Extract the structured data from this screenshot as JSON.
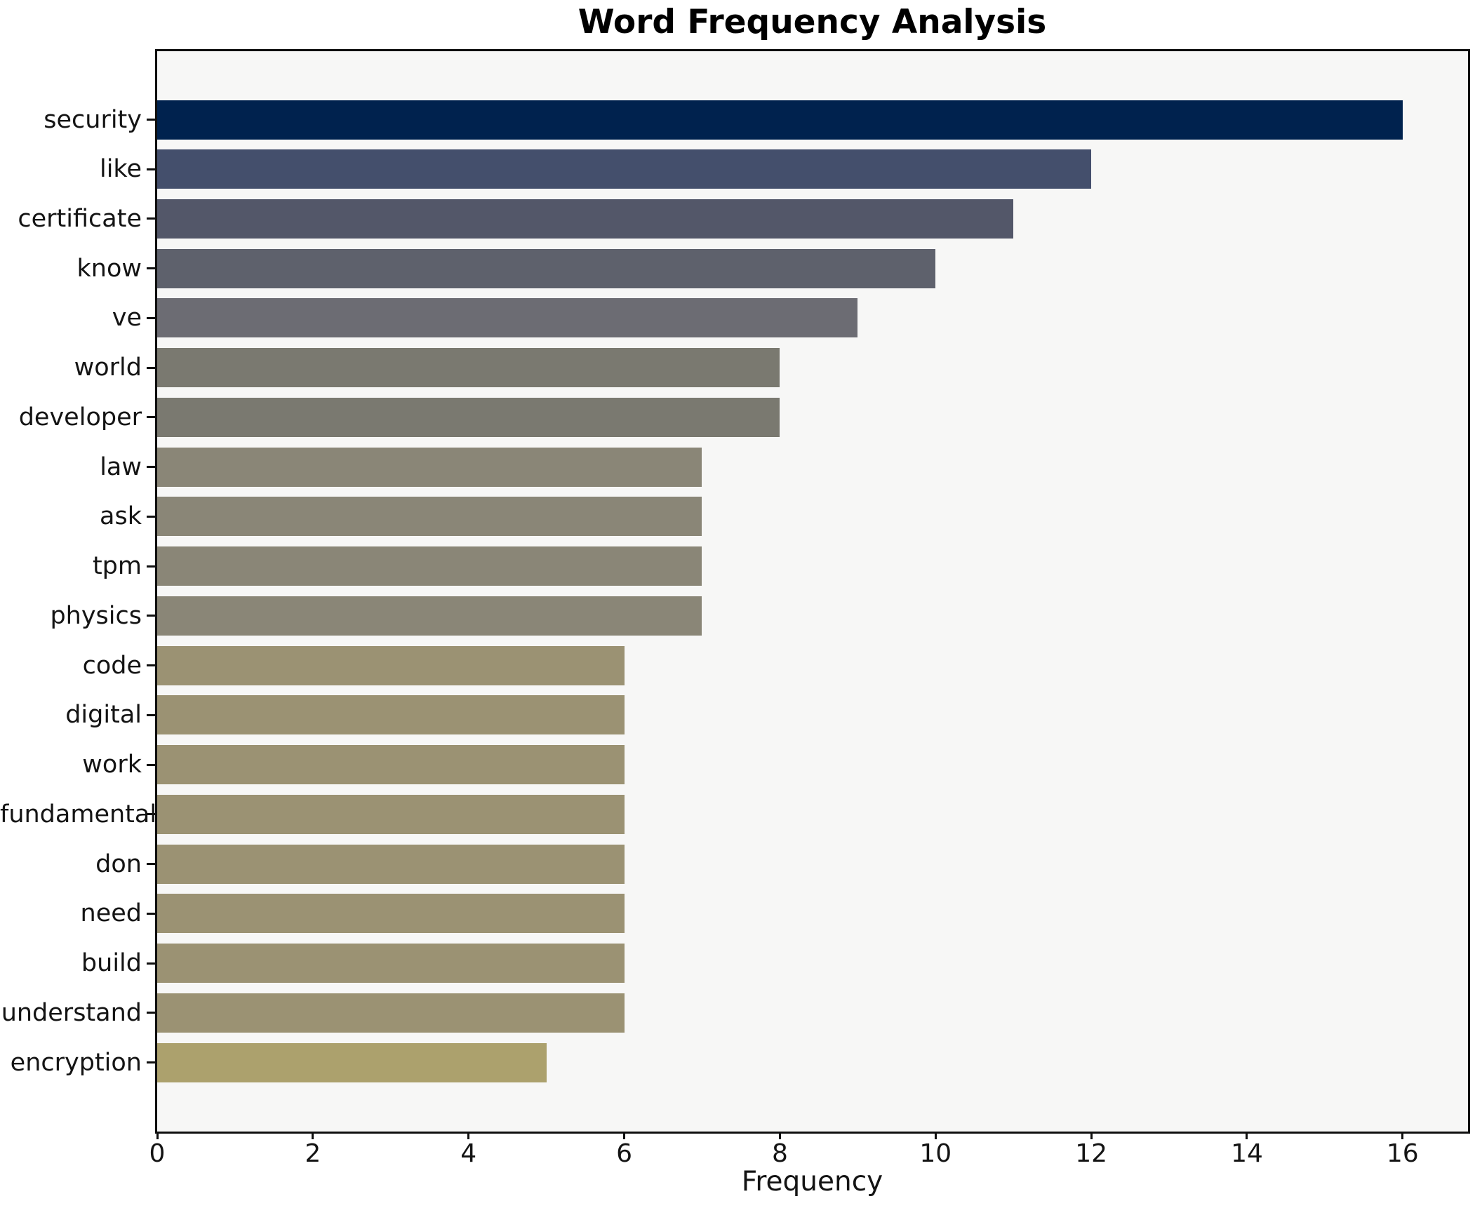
{
  "chart_data": {
    "type": "bar",
    "orientation": "horizontal",
    "title": "Word Frequency Analysis",
    "xlabel": "Frequency",
    "ylabel": "",
    "categories": [
      "security",
      "like",
      "certificate",
      "know",
      "ve",
      "world",
      "developer",
      "law",
      "ask",
      "tpm",
      "physics",
      "code",
      "digital",
      "work",
      "fundamental",
      "don",
      "need",
      "build",
      "understand",
      "encryption"
    ],
    "values": [
      16,
      12,
      11,
      10,
      9,
      8,
      8,
      7,
      7,
      7,
      7,
      6,
      6,
      6,
      6,
      6,
      6,
      6,
      6,
      5
    ],
    "bar_colors": [
      "#00224e",
      "#444f6c",
      "#535769",
      "#5e616c",
      "#6c6c73",
      "#7a7970",
      "#7a7970",
      "#8a8677",
      "#8a8677",
      "#8a8677",
      "#8a8677",
      "#9b9273",
      "#9b9273",
      "#9b9273",
      "#9b9273",
      "#9b9273",
      "#9b9273",
      "#9b9273",
      "#9b9273",
      "#aca16d"
    ],
    "xticks": [
      0,
      2,
      4,
      6,
      8,
      10,
      12,
      14,
      16
    ],
    "xlim": [
      0,
      16.84
    ],
    "grid": false,
    "legend": "none",
    "plot_background": "#f7f7f6",
    "figure_background": "#ffffff",
    "spine_color": "#0f0f0f",
    "text_color": "#141414"
  }
}
